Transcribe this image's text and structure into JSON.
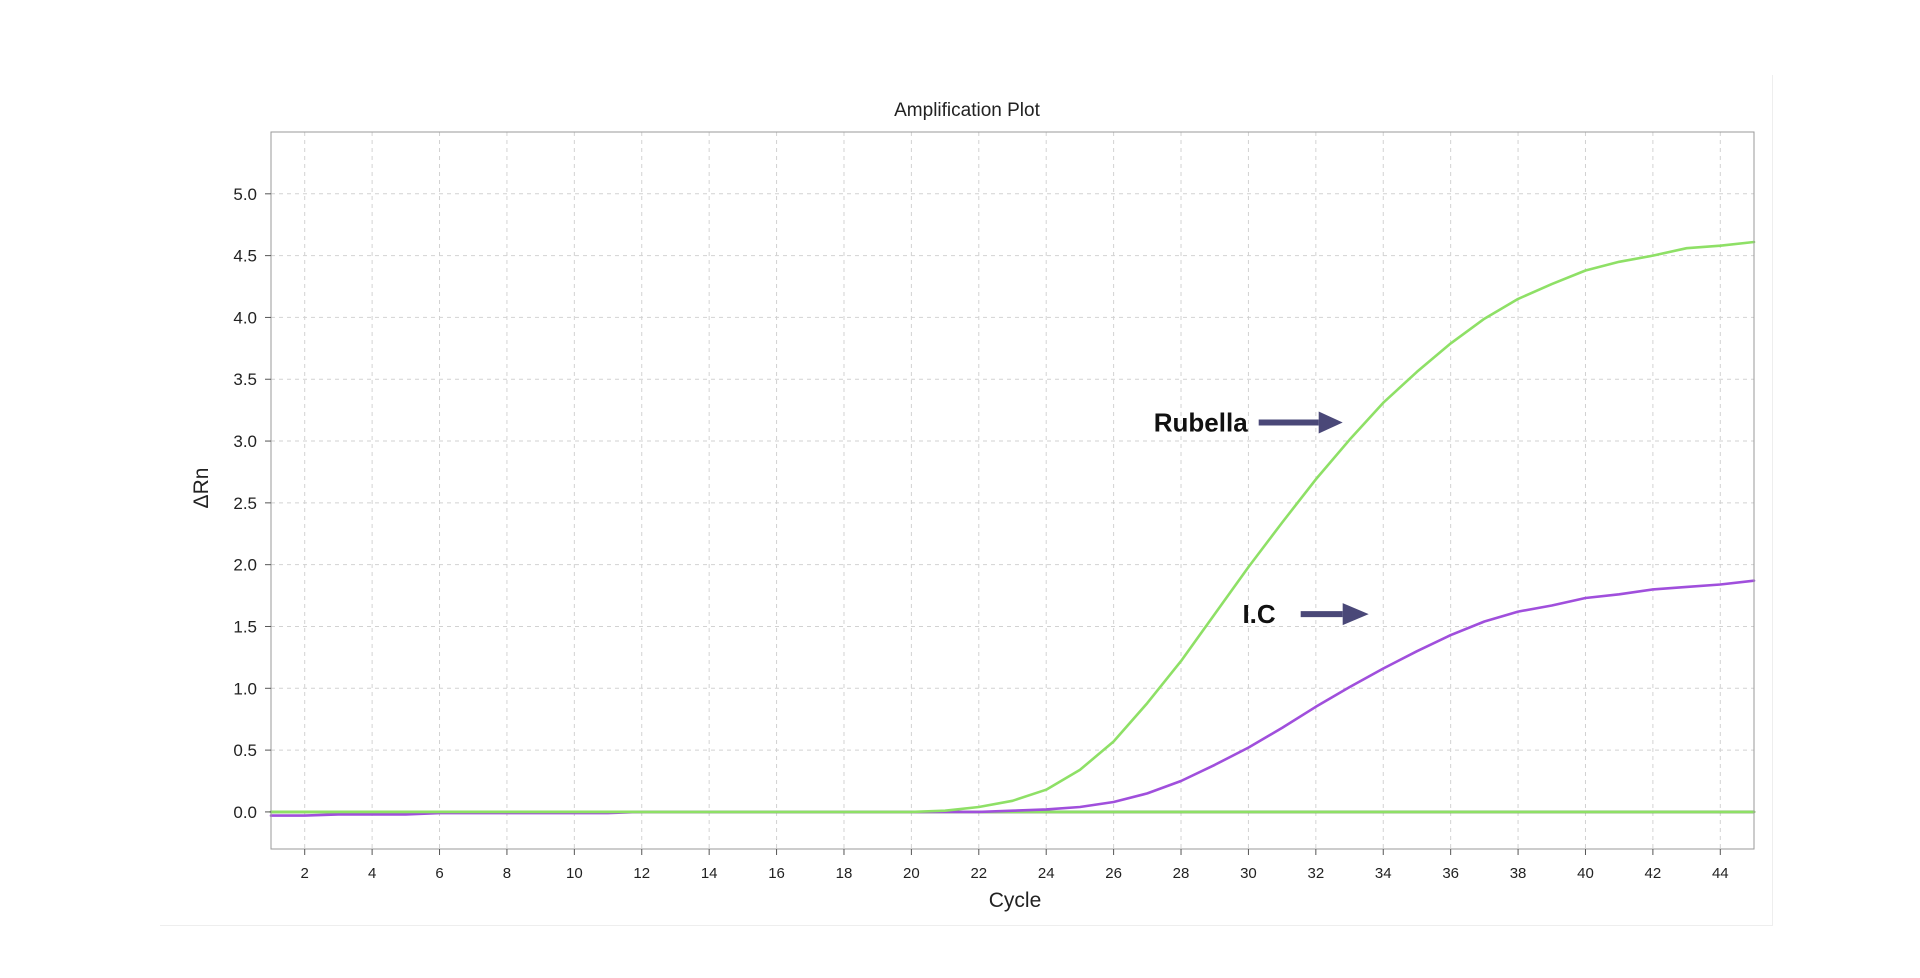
{
  "chart_data": {
    "type": "line",
    "title": "Amplification Plot",
    "xlabel": "Cycle",
    "ylabel": "ΔRn",
    "xlim": [
      1,
      45
    ],
    "ylim": [
      -0.3,
      5.5
    ],
    "x_ticks": [
      2,
      4,
      6,
      8,
      10,
      12,
      14,
      16,
      18,
      20,
      22,
      24,
      26,
      28,
      30,
      32,
      34,
      36,
      38,
      40,
      42,
      44
    ],
    "y_ticks": [
      0.0,
      0.5,
      1.0,
      1.5,
      2.0,
      2.5,
      3.0,
      3.5,
      4.0,
      4.5,
      5.0
    ],
    "y_tick_labels": [
      "0.0",
      "0.5",
      "1.0",
      "1.5",
      "2.0",
      "2.5",
      "3.0",
      "3.5",
      "4.0",
      "4.5",
      "5.0"
    ],
    "grid": true,
    "x": [
      1,
      2,
      3,
      4,
      5,
      6,
      7,
      8,
      9,
      10,
      11,
      12,
      13,
      14,
      15,
      16,
      17,
      18,
      19,
      20,
      21,
      22,
      23,
      24,
      25,
      26,
      27,
      28,
      29,
      30,
      31,
      32,
      33,
      34,
      35,
      36,
      37,
      38,
      39,
      40,
      41,
      42,
      43,
      44,
      45
    ],
    "series": [
      {
        "color": "#8ee066",
        "values": [
          0,
          0,
          0,
          0,
          0,
          0,
          0,
          0,
          0,
          0,
          0,
          0,
          0,
          0,
          0,
          0,
          0,
          0,
          0,
          0,
          0.01,
          0.04,
          0.09,
          0.18,
          0.34,
          0.57,
          0.88,
          1.22,
          1.6,
          1.98,
          2.34,
          2.69,
          3.01,
          3.31,
          3.56,
          3.79,
          3.99,
          4.15,
          4.27,
          4.38,
          4.45,
          4.5,
          4.56,
          4.58,
          4.61
        ]
      },
      {
        "color": "#a04fdc",
        "values": [
          -0.03,
          -0.03,
          -0.02,
          -0.02,
          -0.02,
          -0.01,
          -0.01,
          -0.01,
          -0.01,
          -0.01,
          -0.01,
          0,
          0,
          0,
          0,
          0,
          0,
          0,
          0,
          0,
          0,
          0,
          0.01,
          0.02,
          0.04,
          0.08,
          0.15,
          0.25,
          0.38,
          0.52,
          0.68,
          0.85,
          1.01,
          1.16,
          1.3,
          1.43,
          1.54,
          1.62,
          1.67,
          1.73,
          1.76,
          1.8,
          1.82,
          1.84,
          1.87
        ]
      },
      {
        "color": "#3a3a3a",
        "values": [
          0,
          0,
          0,
          0,
          0,
          0,
          0,
          0,
          0,
          0,
          0,
          0,
          0,
          0,
          0,
          0,
          0,
          0,
          0,
          0,
          0,
          0,
          0,
          0,
          0,
          0,
          0,
          0,
          0,
          0,
          0,
          0,
          0,
          0,
          0,
          0,
          0,
          0,
          0,
          0,
          0,
          0,
          0,
          0,
          0
        ]
      },
      {
        "color": "#8ee066",
        "values": [
          0,
          0,
          0,
          0,
          0,
          0,
          0,
          0,
          0,
          0,
          0,
          0,
          0,
          0,
          0,
          0,
          0,
          0,
          0,
          0,
          0,
          0,
          0,
          0,
          0,
          0,
          0,
          0,
          0,
          0,
          0,
          0,
          0,
          0,
          0,
          0,
          0,
          0,
          0,
          0,
          0,
          0,
          0,
          0,
          0
        ]
      }
    ],
    "annotations": [
      {
        "text": "Rubella",
        "arrow": "right",
        "arrow_color": "#4a4878",
        "at": {
          "x": 32.5,
          "y": 3.15
        }
      },
      {
        "text": "I.C",
        "arrow": "right",
        "arrow_color": "#4a4878",
        "at": {
          "x": 32.5,
          "y": 1.6
        }
      }
    ]
  }
}
